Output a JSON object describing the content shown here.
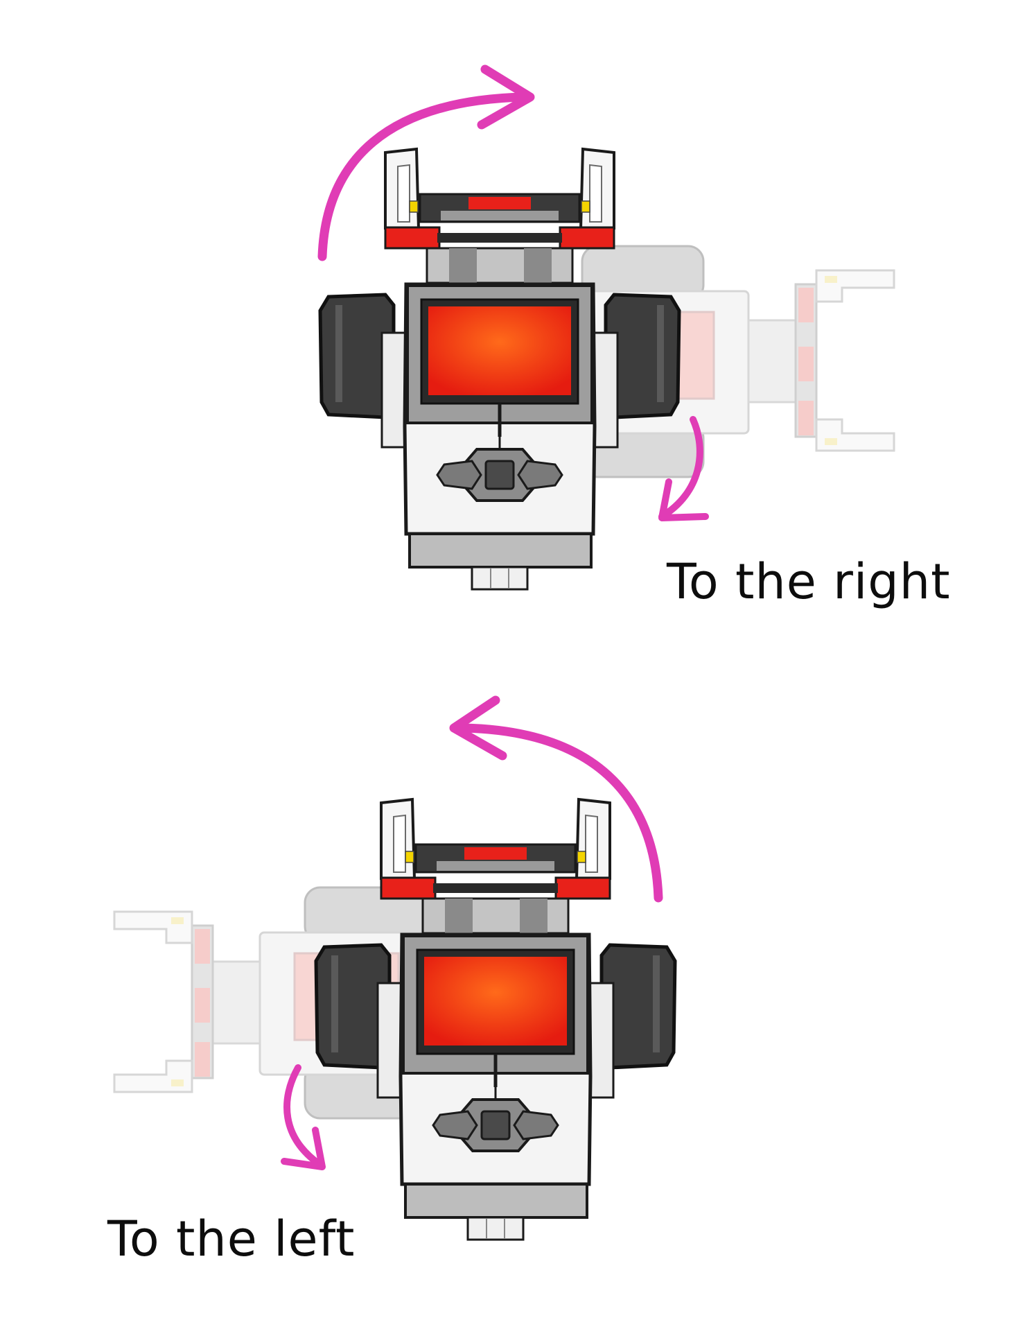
{
  "colors": {
    "arrow": "#e03cb5",
    "screen": "#e51c10",
    "screen_glow": "#ff6a1a",
    "red_part": "#e8211a",
    "tire": "#3d3d3d",
    "tire_tread": "#5a5a5a",
    "outline": "#1a1a1a",
    "body_white": "#f4f4f4",
    "body_gray": "#9e9e9e",
    "frame_gray": "#7a7a7a",
    "yellow": "#f4d400"
  },
  "panels": [
    {
      "id": "right-turn",
      "caption": "To the right",
      "ghost_side": "right",
      "icons": [
        "robot-top-view-icon",
        "ghost-robot-rotated-icon",
        "curved-arrow-clockwise-icon",
        "curved-arrow-down-icon"
      ]
    },
    {
      "id": "left-turn",
      "caption": "To the left",
      "ghost_side": "left",
      "icons": [
        "robot-top-view-icon",
        "ghost-robot-rotated-icon",
        "curved-arrow-counterclockwise-icon",
        "curved-arrow-down-icon"
      ]
    }
  ]
}
